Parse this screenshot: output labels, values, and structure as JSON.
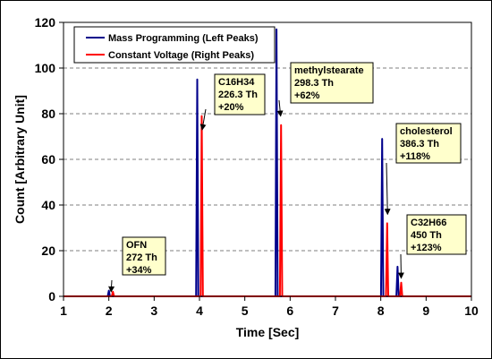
{
  "chart_data": {
    "type": "line",
    "title": "",
    "xlabel": "Time [Sec]",
    "ylabel": "Count [Arbitrary Unit]",
    "xlim": [
      1,
      10
    ],
    "ylim": [
      0,
      120
    ],
    "xticks": [
      1,
      2,
      3,
      4,
      5,
      6,
      7,
      8,
      9,
      10
    ],
    "yticks": [
      0,
      20,
      40,
      60,
      80,
      100,
      120
    ],
    "grid": "horizontal dashed",
    "legend_position": "top-left",
    "series": [
      {
        "name": "Mass Programming (Left Peaks)",
        "color": "#00008B",
        "peaks": [
          {
            "x": 2.0,
            "y": 2.5
          },
          {
            "x": 3.95,
            "y": 95
          },
          {
            "x": 5.7,
            "y": 117
          },
          {
            "x": 8.03,
            "y": 69
          },
          {
            "x": 8.37,
            "y": 13
          }
        ]
      },
      {
        "name": "Constant Voltage (Right Peaks)",
        "color": "#FF0000",
        "peaks": [
          {
            "x": 2.09,
            "y": 2
          },
          {
            "x": 4.05,
            "y": 79
          },
          {
            "x": 5.8,
            "y": 75
          },
          {
            "x": 8.14,
            "y": 32
          },
          {
            "x": 8.45,
            "y": 6
          }
        ]
      }
    ],
    "annotations": [
      {
        "lines": [
          "OFN",
          "272 Th",
          "+34%"
        ],
        "target": {
          "x": 2.05,
          "y": 2
        }
      },
      {
        "lines": [
          "C16H34",
          "226.3 Th",
          "+20%"
        ],
        "target": {
          "x": 4.06,
          "y": 73
        }
      },
      {
        "lines": [
          "methylstearate",
          "298.3 Th",
          "+62%"
        ],
        "target": {
          "x": 5.79,
          "y": 79
        }
      },
      {
        "lines": [
          "cholesterol",
          "386.3 Th",
          "+118%"
        ],
        "target": {
          "x": 8.15,
          "y": 36
        }
      },
      {
        "lines": [
          "C32H66",
          "450 Th",
          "+123%"
        ],
        "target": {
          "x": 8.45,
          "y": 8
        }
      }
    ]
  }
}
